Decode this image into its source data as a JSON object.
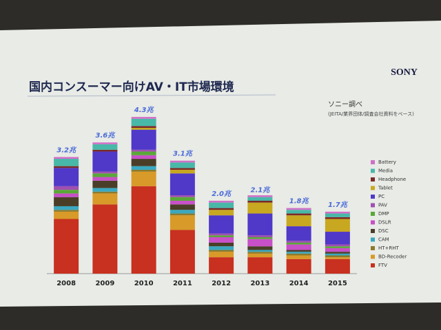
{
  "chart_data": {
    "type": "stacked-bar",
    "title": "国内コンスーマー向けAV・IT市場環境",
    "brand": "SONY",
    "source": "ソニー調べ",
    "source_note": "(JEITA/業界団体/調査会社資料をベース)",
    "categories": [
      "2008",
      "2009",
      "2010",
      "2011",
      "2012",
      "2013",
      "2014",
      "2015"
    ],
    "totals": {
      "values": [
        3.2,
        3.6,
        4.3,
        3.1,
        2.0,
        2.1,
        1.8,
        1.7
      ],
      "value_labels": [
        "3.2兆",
        "3.6兆",
        "4.3兆",
        "3.1兆",
        "2.0兆",
        "2.1兆",
        "1.8兆",
        "1.7兆"
      ]
    },
    "series": [
      {
        "name": "FTV",
        "color": "#c8301f",
        "values": [
          1.5,
          1.9,
          2.4,
          1.2,
          0.45,
          0.45,
          0.4,
          0.4
        ]
      },
      {
        "name": "BD-Recoder",
        "color": "#d89a28",
        "values": [
          0.2,
          0.3,
          0.4,
          0.4,
          0.15,
          0.1,
          0.1,
          0.05
        ]
      },
      {
        "name": "HT+RHT",
        "color": "#8c7a2c",
        "values": [
          0.05,
          0.05,
          0.05,
          0.05,
          0.05,
          0.05,
          0.05,
          0.05
        ]
      },
      {
        "name": "CAM",
        "color": "#3aa8c0",
        "values": [
          0.1,
          0.1,
          0.1,
          0.1,
          0.1,
          0.05,
          0.05,
          0.05
        ]
      },
      {
        "name": "DSC",
        "color": "#4a3e28",
        "values": [
          0.25,
          0.2,
          0.2,
          0.15,
          0.1,
          0.1,
          0.05,
          0.05
        ]
      },
      {
        "name": "DSLR",
        "color": "#c850c8",
        "values": [
          0.1,
          0.1,
          0.1,
          0.1,
          0.15,
          0.2,
          0.15,
          0.1
        ]
      },
      {
        "name": "DMP",
        "color": "#5aa838",
        "values": [
          0.1,
          0.1,
          0.1,
          0.1,
          0.05,
          0.05,
          0.05,
          0.05
        ]
      },
      {
        "name": "PAV",
        "color": "#a050b0",
        "values": [
          0.1,
          0.05,
          0.05,
          0.05,
          0.05,
          0.05,
          0.05,
          0.05
        ]
      },
      {
        "name": "PC",
        "color": "#5038c8",
        "values": [
          0.5,
          0.55,
          0.55,
          0.6,
          0.5,
          0.6,
          0.4,
          0.35
        ]
      },
      {
        "name": "Tablet",
        "color": "#c8a820",
        "values": [
          0,
          0,
          0.05,
          0.1,
          0.15,
          0.3,
          0.3,
          0.35
        ]
      },
      {
        "name": "Headphone",
        "color": "#7a2a28",
        "values": [
          0.05,
          0.05,
          0.05,
          0.05,
          0.05,
          0.05,
          0.05,
          0.05
        ]
      },
      {
        "name": "Media",
        "color": "#48b8a8",
        "values": [
          0.2,
          0.15,
          0.2,
          0.15,
          0.15,
          0.1,
          0.1,
          0.1
        ]
      },
      {
        "name": "Battery",
        "color": "#d070c8",
        "values": [
          0.05,
          0.05,
          0.05,
          0.05,
          0.05,
          0.05,
          0.05,
          0.05
        ]
      }
    ]
  }
}
